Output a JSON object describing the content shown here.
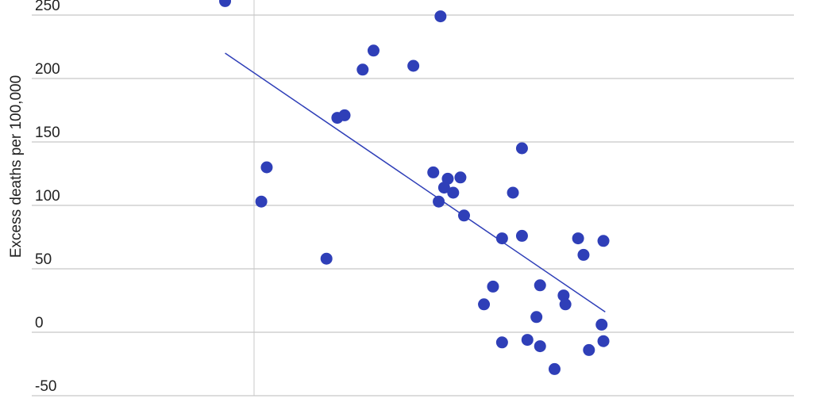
{
  "chart_data": {
    "type": "scatter",
    "title": "",
    "xlabel": "",
    "ylabel": "Excess deaths per 100,000",
    "xlim": [
      -1.0,
      3.0
    ],
    "ylim": [
      -50,
      250
    ],
    "xticks": [
      "-1.0",
      "-0.5",
      "0",
      "0.5",
      "1.0",
      "1.5",
      "2.0",
      "2.5",
      "3.0"
    ],
    "yticks": [
      "-50",
      "0",
      "50",
      "100",
      "150",
      "200",
      "250"
    ],
    "grid": "horizontal",
    "point_color": "#2f3fb8",
    "line_color": "#2f3fb8",
    "points": [
      [
        -0.16,
        261
      ],
      [
        1.03,
        249
      ],
      [
        0.66,
        222
      ],
      [
        0.6,
        207
      ],
      [
        0.88,
        210
      ],
      [
        0.46,
        169
      ],
      [
        0.5,
        171
      ],
      [
        1.48,
        145
      ],
      [
        0.07,
        130
      ],
      [
        0.04,
        103
      ],
      [
        0.99,
        126
      ],
      [
        1.07,
        121
      ],
      [
        1.14,
        122
      ],
      [
        1.05,
        114
      ],
      [
        1.1,
        110
      ],
      [
        1.43,
        110
      ],
      [
        1.02,
        103
      ],
      [
        1.16,
        92
      ],
      [
        0.4,
        58
      ],
      [
        1.37,
        74
      ],
      [
        1.48,
        76
      ],
      [
        1.79,
        74
      ],
      [
        1.93,
        72
      ],
      [
        1.82,
        61
      ],
      [
        1.32,
        36
      ],
      [
        1.58,
        37
      ],
      [
        1.27,
        22
      ],
      [
        1.71,
        29
      ],
      [
        1.72,
        22
      ],
      [
        1.56,
        12
      ],
      [
        1.92,
        6
      ],
      [
        1.37,
        -8
      ],
      [
        1.51,
        -6
      ],
      [
        1.58,
        -11
      ],
      [
        1.93,
        -7
      ],
      [
        1.85,
        -14
      ],
      [
        1.66,
        -29
      ]
    ],
    "trendline": [
      [
        -0.16,
        220
      ],
      [
        1.94,
        16
      ]
    ]
  }
}
